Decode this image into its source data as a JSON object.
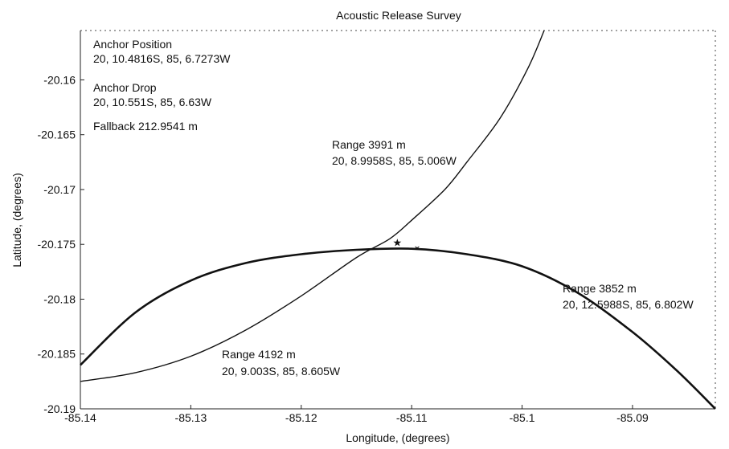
{
  "chart_data": {
    "type": "line",
    "title": "Acoustic Release Survey",
    "xlabel": "Longitude, (degrees)",
    "ylabel": "Latitude, (degrees)",
    "xlim": [
      -85.14,
      -85.0825
    ],
    "ylim": [
      -20.19,
      -20.1555
    ],
    "x_ticks": [
      -85.14,
      -85.13,
      -85.12,
      -85.11,
      -85.1,
      -85.09
    ],
    "x_tick_labels": [
      "-85.14",
      "-85.13",
      "-85.12",
      "-85.11",
      "-85.1",
      "-85.09"
    ],
    "y_ticks": [
      -20.19,
      -20.185,
      -20.18,
      -20.175,
      -20.17,
      -20.165,
      -20.16
    ],
    "y_tick_labels": [
      "-20.19",
      "-20.185",
      "-20.18",
      "-20.175",
      "-20.17",
      "-20.165",
      "-20.16"
    ],
    "grid": false,
    "series": [
      {
        "label": "Range 3991 m",
        "position": "20, 8.9958S, 85, 5.006W",
        "style": "thin",
        "points": [
          [
            -85.14,
            -20.1875
          ],
          [
            -85.135,
            -20.1867
          ],
          [
            -85.13,
            -20.1852
          ],
          [
            -85.125,
            -20.1828
          ],
          [
            -85.12,
            -20.1797
          ],
          [
            -85.115,
            -20.1762
          ],
          [
            -85.112,
            -20.1745
          ],
          [
            -85.11,
            -20.1728
          ],
          [
            -85.107,
            -20.17
          ],
          [
            -85.105,
            -20.1675
          ],
          [
            -85.102,
            -20.1635
          ],
          [
            -85.0995,
            -20.159
          ],
          [
            -85.098,
            -20.1555
          ]
        ]
      },
      {
        "label": "Range 3852 m",
        "position": "20, 12.5988S, 85, 6.802W",
        "style": "thick",
        "points": [
          [
            -85.14,
            -20.186
          ],
          [
            -85.135,
            -20.1812
          ],
          [
            -85.13,
            -20.1783
          ],
          [
            -85.125,
            -20.1767
          ],
          [
            -85.12,
            -20.1759
          ],
          [
            -85.115,
            -20.1755
          ],
          [
            -85.11,
            -20.1754
          ],
          [
            -85.105,
            -20.1759
          ],
          [
            -85.1,
            -20.177
          ],
          [
            -85.095,
            -20.1794
          ],
          [
            -85.09,
            -20.183
          ],
          [
            -85.086,
            -20.1865
          ],
          [
            -85.0825,
            -20.19
          ]
        ]
      }
    ],
    "markers": [
      {
        "name": "star",
        "symbol": "★",
        "x": -85.1113,
        "y": -20.1748
      },
      {
        "name": "drop",
        "symbol": "̆",
        "x": -85.1095,
        "y": -20.1758
      }
    ],
    "annotations": {
      "anchor_position_title": "Anchor Position",
      "anchor_position_value": "20, 10.4816S, 85, 6.7273W",
      "anchor_drop_title": "Anchor Drop",
      "anchor_drop_value": "20, 10.551S, 85, 6.63W",
      "fallback": "Fallback  212.9541 m",
      "range_a_title": "Range 3991 m",
      "range_a_value": "20, 8.9958S, 85, 5.006W",
      "range_b_title": "Range 3852 m",
      "range_b_value": "20, 12.5988S, 85, 6.802W",
      "range_c_title": "Range 4192 m",
      "range_c_value": "20, 9.003S, 85, 8.605W"
    }
  }
}
